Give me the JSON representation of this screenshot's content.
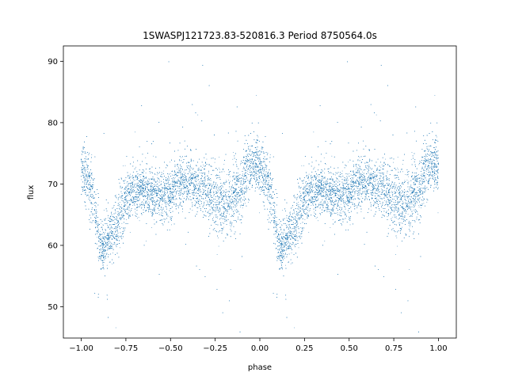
{
  "chart_data": {
    "type": "scatter",
    "title": "1SWASPJ121723.83-520816.3 Period 8750564.0s",
    "xlabel": "phase",
    "ylabel": "flux",
    "xlim": [
      -1.1,
      1.1
    ],
    "ylim": [
      44.9,
      92.5
    ],
    "xticks": [
      -1.0,
      -0.75,
      -0.5,
      -0.25,
      0.0,
      0.25,
      0.5,
      0.75,
      1.0
    ],
    "xtick_labels": [
      "−1.00",
      "−0.75",
      "−0.50",
      "−0.25",
      "0.00",
      "0.25",
      "0.50",
      "0.75",
      "1.00"
    ],
    "yticks": [
      50,
      60,
      70,
      80,
      90
    ],
    "ytick_labels": [
      "50",
      "60",
      "70",
      "80",
      "90"
    ],
    "series_color": "#1f77b4",
    "grid": false,
    "legend": "none",
    "profile_phase": [
      0.0,
      0.05,
      0.08,
      0.1,
      0.12,
      0.15,
      0.2,
      0.25,
      0.3,
      0.35,
      0.4,
      0.45,
      0.5,
      0.55,
      0.6,
      0.65,
      0.7,
      0.75,
      0.8,
      0.85,
      0.9,
      0.95,
      1.0
    ],
    "profile_flux_center": [
      72.5,
      70.0,
      65.0,
      61.0,
      59.5,
      61.0,
      64.0,
      67.5,
      69.0,
      69.0,
      68.5,
      68.0,
      68.5,
      70.0,
      70.5,
      69.5,
      69.0,
      68.0,
      66.5,
      67.5,
      70.0,
      73.0,
      73.0
    ],
    "profile_flux_spread": [
      3.5,
      4.0,
      4.5,
      3.5,
      3.0,
      3.5,
      4.0,
      3.5,
      3.5,
      3.0,
      3.0,
      3.5,
      3.5,
      4.0,
      3.5,
      3.5,
      4.0,
      4.5,
      5.0,
      4.5,
      4.0,
      3.5,
      3.5
    ],
    "point_count_per_cycle": 9000
  }
}
